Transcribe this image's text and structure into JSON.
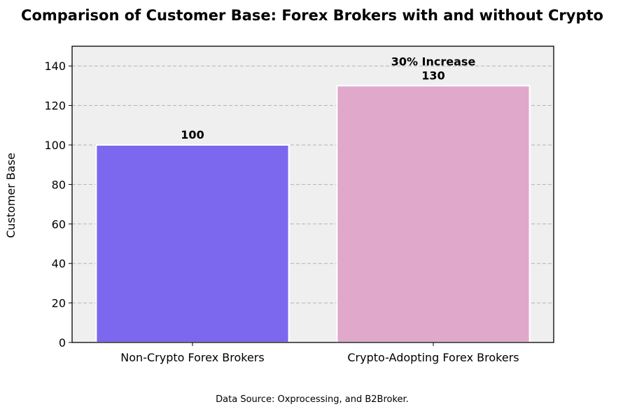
{
  "chart_data": {
    "type": "bar",
    "title": "Comparison of Customer Base: Forex Brokers with and without Crypto",
    "xlabel": "",
    "ylabel": "Customer Base",
    "categories": [
      "Non-Crypto Forex Brokers",
      "Crypto-Adopting Forex Brokers"
    ],
    "values": [
      100,
      130
    ],
    "value_labels": [
      "100",
      "130"
    ],
    "bar_colors": [
      "#7b68ee",
      "#e0a8cb"
    ],
    "ylim": [
      0,
      150
    ],
    "yticks": [
      0,
      20,
      40,
      60,
      80,
      100,
      120,
      140
    ],
    "grid": true,
    "annotations": [
      {
        "text": "30% Increase",
        "category": "Crypto-Adopting Forex Brokers"
      }
    ],
    "plot_background": "#efefef",
    "source_note": "Data Source: Oxprocessing, and B2Broker."
  }
}
